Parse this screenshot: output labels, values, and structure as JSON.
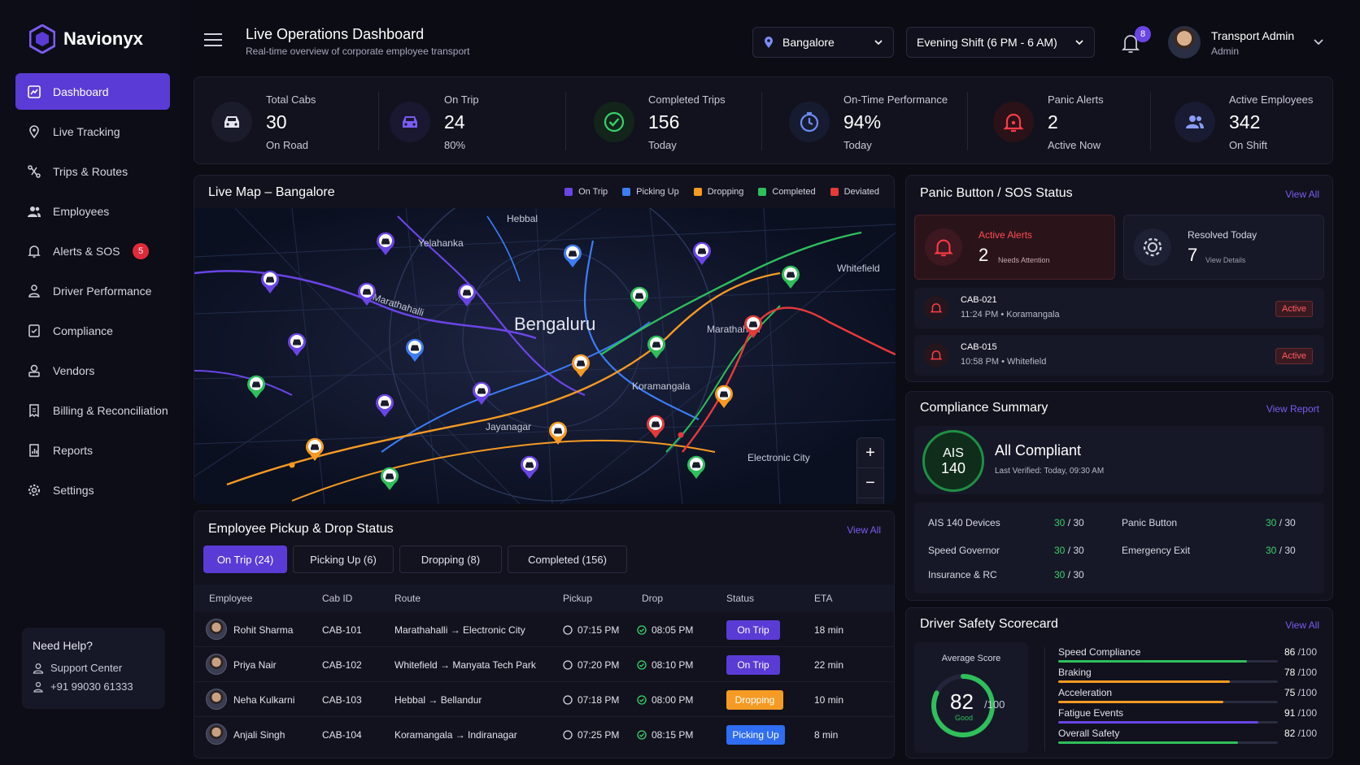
{
  "app": {
    "name": "Navionyx"
  },
  "sidebar": {
    "items": [
      {
        "label": "Dashboard"
      },
      {
        "label": "Live Tracking"
      },
      {
        "label": "Trips & Routes"
      },
      {
        "label": "Employees"
      },
      {
        "label": "Alerts & SOS",
        "badge": "5"
      },
      {
        "label": "Driver Performance"
      },
      {
        "label": "Compliance"
      },
      {
        "label": "Vendors"
      },
      {
        "label": "Billing & Reconciliation"
      },
      {
        "label": "Reports"
      },
      {
        "label": "Settings"
      }
    ],
    "help": {
      "title": "Need Help?",
      "support": "Support Center",
      "phone": "+91 99030 61333"
    }
  },
  "header": {
    "title": "Live Operations Dashboard",
    "subtitle": "Real-time overview of corporate employee transport",
    "city": "Bangalore",
    "shift": "Evening Shift (6 PM - 6 AM)",
    "notif_count": "8",
    "user_name": "Transport Admin",
    "user_role": "Admin"
  },
  "stats": [
    {
      "label": "Total Cabs",
      "value": "30",
      "sub": "On Road",
      "color": "#d7d9e6"
    },
    {
      "label": "On Trip",
      "value": "24",
      "sub": "80%",
      "color": "#7b5cf0"
    },
    {
      "label": "Completed Trips",
      "value": "156",
      "sub": "Today",
      "color": "#36d26a"
    },
    {
      "label": "On-Time Performance",
      "value": "94%",
      "sub": "Today",
      "color": "#6d8cf5"
    },
    {
      "label": "Panic Alerts",
      "value": "2",
      "sub": "Active Now",
      "color": "#ff3b47"
    },
    {
      "label": "Active Employees",
      "value": "342",
      "sub": "On Shift",
      "color": "#8a9cf7"
    }
  ],
  "map": {
    "title": "Live Map – Bangalore",
    "legend": [
      {
        "label": "On Trip",
        "color": "#6a45e6"
      },
      {
        "label": "Picking Up",
        "color": "#3d7cf5"
      },
      {
        "label": "Dropping",
        "color": "#f59a23"
      },
      {
        "label": "Completed",
        "color": "#2fbf5b"
      },
      {
        "label": "Deviated",
        "color": "#e53a3a"
      }
    ],
    "labels": {
      "city": "Bengaluru",
      "hebbal": "Hebbal",
      "yelahanka": "Yelahanka",
      "whitefield": "Whitefield",
      "marathahalli": "Marathahalli",
      "marathahalli_road": "Marathahalli",
      "koramangala": "Koramangala",
      "jayanagar": "Jayanagar",
      "electronic_city": "Electronic City"
    }
  },
  "trips": {
    "title": "Employee Pickup & Drop Status",
    "view_all": "View All",
    "tabs": [
      "On Trip (24)",
      "Picking Up (6)",
      "Dropping (8)",
      "Completed (156)"
    ],
    "columns": [
      "Employee",
      "Cab ID",
      "Route",
      "Pickup",
      "Drop",
      "Status",
      "ETA"
    ],
    "rows": [
      {
        "employee": "Rohit Sharma",
        "cab": "CAB-101",
        "route": "Marathahalli → Electronic City",
        "pickup": "07:15 PM",
        "drop": "08:05 PM",
        "status": "On Trip",
        "status_color": "#5b3bd6",
        "eta": "18 min"
      },
      {
        "employee": "Priya Nair",
        "cab": "CAB-102",
        "route": "Whitefield → Manyata Tech Park",
        "pickup": "07:20 PM",
        "drop": "08:10 PM",
        "status": "On Trip",
        "status_color": "#5b3bd6",
        "eta": "22 min"
      },
      {
        "employee": "Neha Kulkarni",
        "cab": "CAB-103",
        "route": "Hebbal → Bellandur",
        "pickup": "07:18 PM",
        "drop": "08:00 PM",
        "status": "Dropping",
        "status_color": "#f59a23",
        "eta": "10 min"
      },
      {
        "employee": "Anjali Singh",
        "cab": "CAB-104",
        "route": "Koramangala → Indiranagar",
        "pickup": "07:25 PM",
        "drop": "08:15 PM",
        "status": "Picking Up",
        "status_color": "#2f6df2",
        "eta": "8 min"
      }
    ]
  },
  "sos": {
    "title": "Panic Button / SOS Status",
    "view_all": "View All",
    "active_label": "Active Alerts",
    "active_value": "2",
    "active_sub": "Needs Attention",
    "resolved_label": "Resolved Today",
    "resolved_value": "7",
    "resolved_sub": "View Details",
    "alerts": [
      {
        "cab": "CAB-021",
        "detail": "11:24 PM • Koramangala",
        "status": "Active"
      },
      {
        "cab": "CAB-015",
        "detail": "10:58 PM • Whitefield",
        "status": "Active"
      }
    ]
  },
  "compliance": {
    "title": "Compliance Summary",
    "view_report": "View Report",
    "badge_line1": "AIS",
    "badge_line2": "140",
    "status": "All Compliant",
    "verified": "Last Verified: Today, 09:30 AM",
    "items": [
      {
        "label": "AIS 140 Devices",
        "done": "30",
        "total": "/ 30"
      },
      {
        "label": "Panic Button",
        "done": "30",
        "total": "/ 30"
      },
      {
        "label": "Speed Governor",
        "done": "30",
        "total": "/ 30"
      },
      {
        "label": "Emergency Exit",
        "done": "30",
        "total": "/ 30"
      },
      {
        "label": "Insurance & RC",
        "done": "30",
        "total": "/ 30"
      }
    ]
  },
  "safety": {
    "title": "Driver Safety Scorecard",
    "view_all": "View All",
    "avg_label": "Average Score",
    "avg_value": "82",
    "avg_max": "/100",
    "avg_grade": "Good",
    "avg_fraction": 0.82,
    "metrics": [
      {
        "label": "Speed Compliance",
        "value": "86",
        "max": "/100",
        "fraction": 0.86,
        "color": "#2fbf5b"
      },
      {
        "label": "Braking",
        "value": "78",
        "max": "/100",
        "fraction": 0.78,
        "color": "#f59a23"
      },
      {
        "label": "Acceleration",
        "value": "75",
        "max": "/100",
        "fraction": 0.75,
        "color": "#f59a23"
      },
      {
        "label": "Fatigue Events",
        "value": "91",
        "max": "/100",
        "fraction": 0.91,
        "color": "#6a45e6"
      },
      {
        "label": "Overall Safety",
        "value": "82",
        "max": "/100",
        "fraction": 0.82,
        "color": "#2fbf5b"
      }
    ]
  }
}
